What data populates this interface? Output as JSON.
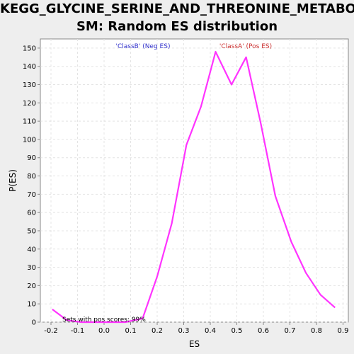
{
  "chart_data": {
    "type": "line",
    "title_line1": "KEGG_GLYCINE_SERINE_AND_THREONINE_METABOLI",
    "title_line2": "SM: Random ES distribution",
    "xlabel": "ES",
    "ylabel": "P(ES)",
    "xlim": [
      -0.24,
      0.92
    ],
    "ylim": [
      0,
      155
    ],
    "x_ticks": [
      -0.2,
      -0.1,
      0.0,
      0.1,
      0.2,
      0.3,
      0.4,
      0.5,
      0.6,
      0.7,
      0.8,
      0.9
    ],
    "x_tick_labels": [
      "-0.2",
      "-0.1",
      "0.0",
      "0.1",
      "0.2",
      "0.3",
      "0.4",
      "0.5",
      "0.6",
      "0.7",
      "0.8",
      "0.9"
    ],
    "y_ticks": [
      0,
      10,
      20,
      30,
      40,
      50,
      60,
      70,
      80,
      90,
      100,
      110,
      120,
      130,
      140,
      150
    ],
    "grid": true,
    "series": [
      {
        "color": "#ff33ff",
        "x": [
          -0.195,
          -0.14,
          -0.085,
          -0.03,
          0.025,
          0.08,
          0.145,
          0.2,
          0.255,
          0.31,
          0.365,
          0.42,
          0.48,
          0.535,
          0.59,
          0.645,
          0.705,
          0.76,
          0.815,
          0.87
        ],
        "y": [
          7,
          1,
          0,
          0,
          0,
          0,
          2,
          25,
          54,
          97,
          118,
          148,
          130,
          145,
          109,
          69,
          44,
          27,
          15,
          8
        ]
      }
    ],
    "annotations": {
      "neg": {
        "text": "'ClassB' (Neg ES)",
        "color": "#3333cc"
      },
      "pos": {
        "text": "'ClassA' (Pos ES)",
        "color": "#cc3333"
      },
      "sets": {
        "text": "Sets with pos scores: 99%",
        "color": "#000000"
      }
    }
  }
}
